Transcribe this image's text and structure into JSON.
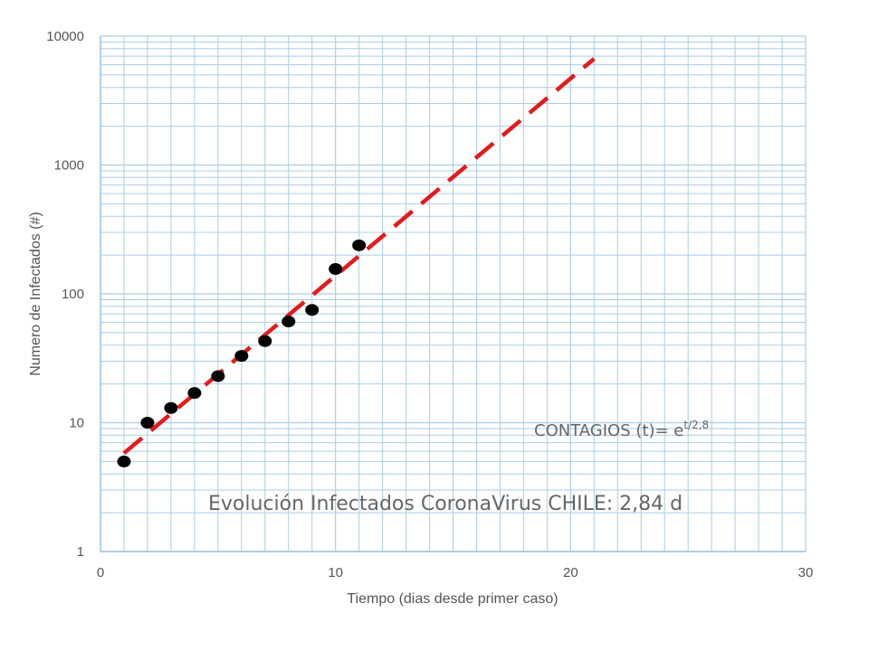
{
  "chart_data": {
    "type": "scatter",
    "xlabel": "Tiempo (dias desde primer caso)",
    "ylabel": "Numero de Infectados (#)",
    "xlim": [
      0,
      30
    ],
    "ylim": [
      1,
      10000
    ],
    "yscale": "log",
    "x_ticks": [
      0,
      10,
      20,
      30
    ],
    "y_ticks": [
      1,
      10,
      100,
      1000,
      10000
    ],
    "grid": true,
    "series": [
      {
        "kind": "points",
        "x": [
          1,
          2,
          3,
          4,
          5,
          6,
          7,
          8,
          9,
          10,
          11
        ],
        "y": [
          5,
          10,
          13,
          17,
          23,
          33,
          43,
          61,
          75,
          156,
          238
        ]
      },
      {
        "kind": "fit-line",
        "x": [
          1,
          21
        ],
        "y": [
          5.8,
          6680
        ]
      }
    ],
    "annotations": {
      "formula_base": "CONTAGIOS (t)= e",
      "formula_exponent": "t/2,8",
      "title_text": "Evolución Infectados CoronaVirus CHILE: 2,84 d"
    },
    "colors": {
      "grid": "#a9cde6",
      "axis": "#9ec3e0",
      "points": "#000000",
      "fit_line": "#e41b1b",
      "text": "#595959"
    }
  }
}
